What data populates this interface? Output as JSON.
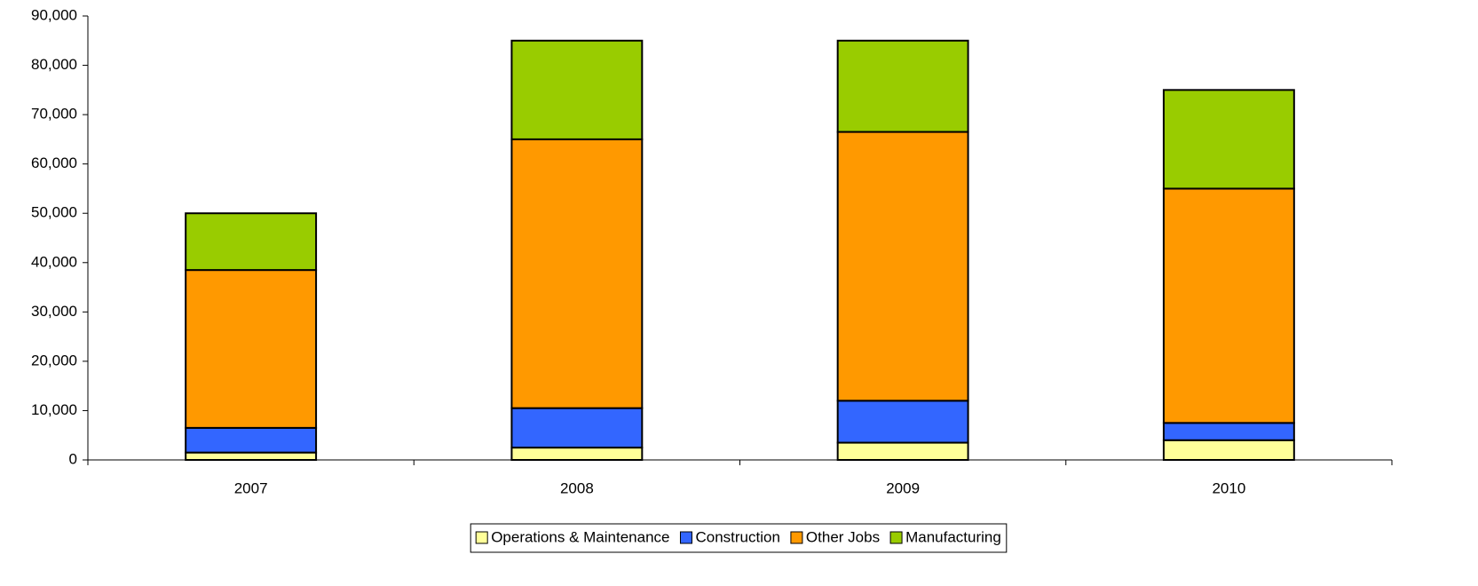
{
  "chart_data": {
    "type": "stacked_bar",
    "categories": [
      "2007",
      "2008",
      "2009",
      "2010"
    ],
    "series": [
      {
        "name": "Operations & Maintenance",
        "color": "#ffff99",
        "values": [
          1500,
          2500,
          3500,
          4000
        ]
      },
      {
        "name": "Construction",
        "color": "#3366ff",
        "values": [
          5000,
          8000,
          8500,
          3500
        ]
      },
      {
        "name": "Other Jobs",
        "color": "#ff9900",
        "values": [
          32000,
          54500,
          54500,
          47500
        ]
      },
      {
        "name": "Manufacturing",
        "color": "#99cc00",
        "values": [
          11500,
          20000,
          18500,
          20000
        ]
      }
    ],
    "ylim": [
      0,
      90000
    ],
    "yticks": [
      0,
      {
        "value": 10000,
        "label": "10,000"
      },
      {
        "value": 20000,
        "label": "20,000"
      },
      {
        "value": 30000,
        "label": "30,000"
      },
      {
        "value": 40000,
        "label": "40,000"
      },
      {
        "value": 50000,
        "label": "50,000"
      },
      {
        "value": 60000,
        "label": "60,000"
      },
      {
        "value": 70000,
        "label": "70,000"
      },
      {
        "value": 80000,
        "label": "80,000"
      },
      {
        "value": 90000,
        "label": "90,000"
      }
    ],
    "legend": "bottom"
  }
}
